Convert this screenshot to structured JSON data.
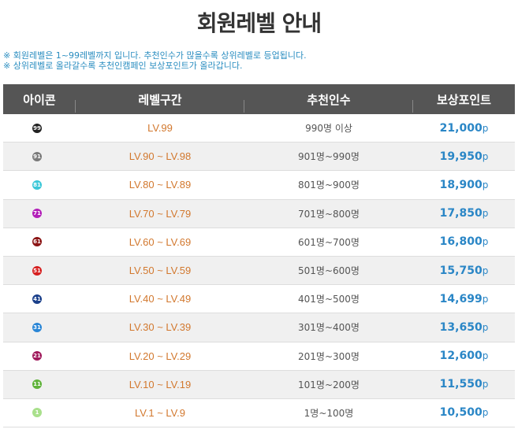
{
  "title": "회원레벨 안내",
  "notes": [
    "※ 회원레벨은 1~99레벨까지 입니다. 추천인수가 많을수록 상위레벨로 등업됩니다.",
    "※ 상위레벨로 올라갈수록 추천인캠페인 보상포인트가 올라갑니다."
  ],
  "headers": [
    "아이콘",
    "레벨구간",
    "추천인수",
    "보상포인트"
  ],
  "rows": [
    {
      "badge": "99",
      "badge_color": "#222222",
      "level": "LV.99",
      "referrals": "990명 이상",
      "points": "21,000",
      "unit": "p"
    },
    {
      "badge": "91",
      "badge_color": "#7a7a7a",
      "level": "LV.90 ~ LV.98",
      "referrals": "901명~990명",
      "points": "19,950",
      "unit": "p"
    },
    {
      "badge": "81",
      "badge_color": "#3cc8d8",
      "level": "LV.80 ~ LV.89",
      "referrals": "801명~900명",
      "points": "18,900",
      "unit": "p"
    },
    {
      "badge": "71",
      "badge_color": "#b21fb8",
      "level": "LV.70 ~ LV.79",
      "referrals": "701명~800명",
      "points": "17,850",
      "unit": "p"
    },
    {
      "badge": "61",
      "badge_color": "#8b1515",
      "level": "LV.60 ~ LV.69",
      "referrals": "601명~700명",
      "points": "16,800",
      "unit": "p"
    },
    {
      "badge": "51",
      "badge_color": "#d62020",
      "level": "LV.50 ~ LV.59",
      "referrals": "501명~600명",
      "points": "15,750",
      "unit": "p"
    },
    {
      "badge": "41",
      "badge_color": "#1a3f8a",
      "level": "LV.40 ~ LV.49",
      "referrals": "401명~500명",
      "points": "14,699",
      "unit": "p"
    },
    {
      "badge": "31",
      "badge_color": "#2a86d6",
      "level": "LV.30 ~ LV.39",
      "referrals": "301명~400명",
      "points": "13,650",
      "unit": "p"
    },
    {
      "badge": "21",
      "badge_color": "#a01a5c",
      "level": "LV.20 ~ LV.29",
      "referrals": "201명~300명",
      "points": "12,600",
      "unit": "p"
    },
    {
      "badge": "11",
      "badge_color": "#5fb33a",
      "level": "LV.10 ~ LV.19",
      "referrals": "101명~200명",
      "points": "11,550",
      "unit": "p"
    },
    {
      "badge": "1",
      "badge_color": "#a9e08c",
      "level": "LV.1 ~ LV.9",
      "referrals": "1명~100명",
      "points": "10,500",
      "unit": "p"
    }
  ]
}
